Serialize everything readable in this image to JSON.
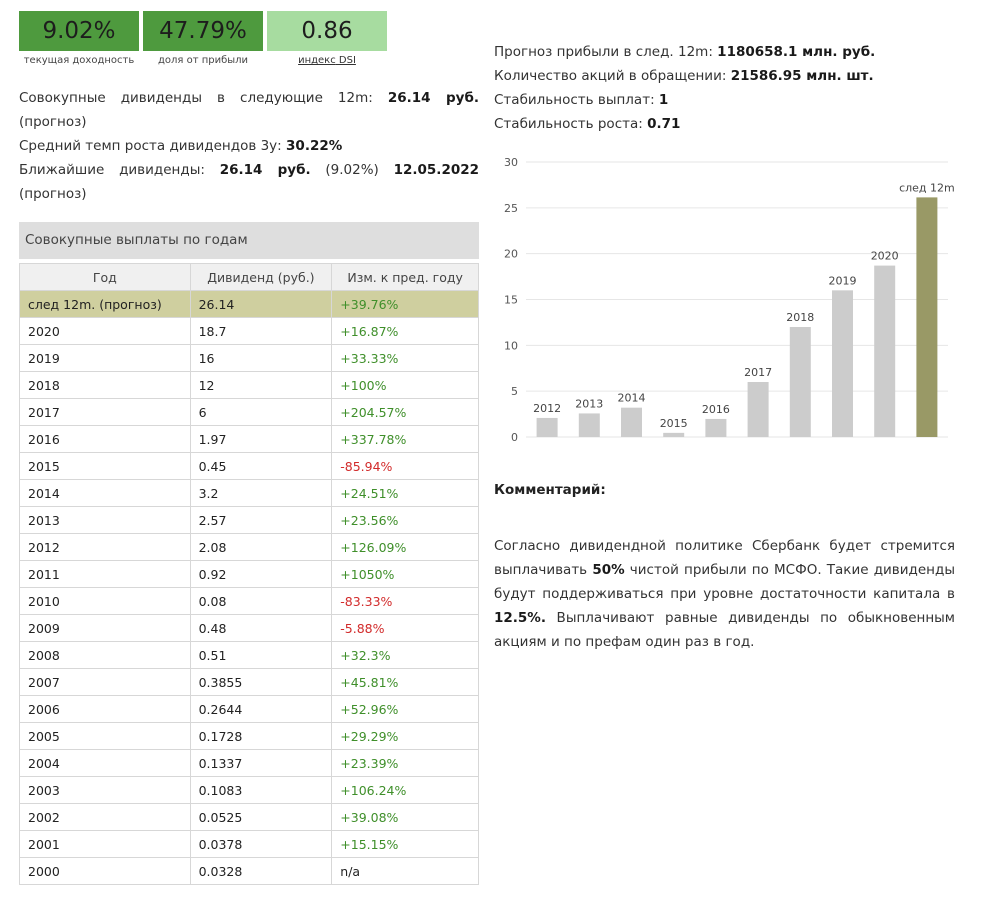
{
  "tiles": [
    {
      "value": "9.02%",
      "caption": "текущая доходность",
      "bg": "#4e9a3e"
    },
    {
      "value": "47.79%",
      "caption": "доля от прибыли",
      "bg": "#4e9a3e"
    },
    {
      "value": "0.86",
      "caption_link": "индекс",
      "caption_rest": " DSI",
      "bg": "#a7dca0"
    }
  ],
  "summary": {
    "total_label": "Совокупные дивиденды в следующие 12m:",
    "total_value": "26.14 руб.",
    "total_note": "(прогноз)",
    "growth_label": "Средний темп роста дивидендов 3у:",
    "growth_value": "30.22%",
    "next_label": "Ближайшие дивиденды:",
    "next_value": "26.14 руб.",
    "next_pct": "(9.02%)",
    "next_date": "12.05.2022",
    "next_note": "(прогноз)"
  },
  "table": {
    "title": "Совокупные выплаты по годам",
    "headers": [
      "Год",
      "Дивиденд (руб.)",
      "Изм. к пред. году"
    ],
    "rows": [
      [
        "след 12m. (прогноз)",
        "26.14",
        "+39.76%"
      ],
      [
        "2020",
        "18.7",
        "+16.87%"
      ],
      [
        "2019",
        "16",
        "+33.33%"
      ],
      [
        "2018",
        "12",
        "+100%"
      ],
      [
        "2017",
        "6",
        "+204.57%"
      ],
      [
        "2016",
        "1.97",
        "+337.78%"
      ],
      [
        "2015",
        "0.45",
        "-85.94%"
      ],
      [
        "2014",
        "3.2",
        "+24.51%"
      ],
      [
        "2013",
        "2.57",
        "+23.56%"
      ],
      [
        "2012",
        "2.08",
        "+126.09%"
      ],
      [
        "2011",
        "0.92",
        "+1050%"
      ],
      [
        "2010",
        "0.08",
        "-83.33%"
      ],
      [
        "2009",
        "0.48",
        "-5.88%"
      ],
      [
        "2008",
        "0.51",
        "+32.3%"
      ],
      [
        "2007",
        "0.3855",
        "+45.81%"
      ],
      [
        "2006",
        "0.2644",
        "+52.96%"
      ],
      [
        "2005",
        "0.1728",
        "+29.29%"
      ],
      [
        "2004",
        "0.1337",
        "+23.39%"
      ],
      [
        "2003",
        "0.1083",
        "+106.24%"
      ],
      [
        "2002",
        "0.0525",
        "+39.08%"
      ],
      [
        "2001",
        "0.0378",
        "+15.15%"
      ],
      [
        "2000",
        "0.0328",
        "n/a"
      ]
    ]
  },
  "stats": [
    {
      "label": "Прогноз прибыли в след. 12m: ",
      "value": "1180658.1 млн. руб."
    },
    {
      "label": "Количество акций в обращении: ",
      "value": "21586.95 млн. шт."
    },
    {
      "label": "Стабильность выплат: ",
      "value": "1"
    },
    {
      "label": "Стабильность роста: ",
      "value": "0.71"
    }
  ],
  "chart_data": {
    "type": "bar",
    "categories": [
      "2012",
      "2013",
      "2014",
      "2015",
      "2016",
      "2017",
      "2018",
      "2019",
      "2020",
      "след 12m"
    ],
    "values": [
      2.08,
      2.57,
      3.2,
      0.45,
      1.97,
      6,
      12,
      16,
      18.7,
      26.14
    ],
    "ylim": [
      0,
      30
    ],
    "yticks": [
      0,
      5,
      10,
      15,
      20,
      25,
      30
    ],
    "title": "",
    "xlabel": "",
    "ylabel": "",
    "colors": {
      "bar": "#cccccc",
      "highlight": "#999966",
      "grid": "#e6e6e6"
    }
  },
  "comment": {
    "title": "Комментарий:",
    "p1": "Согласно дивидендной политике Сбербанк будет стремится выплачивать ",
    "b1": "50%",
    "p2": " чистой прибыли по МСФО. Такие дивиденды будут поддерживаться при уровне достаточности капитала в ",
    "b2": "12.5%.",
    "p3": " Выплачивают равные дивиденды по обыкновенным акциям и по префам один раз в год."
  }
}
